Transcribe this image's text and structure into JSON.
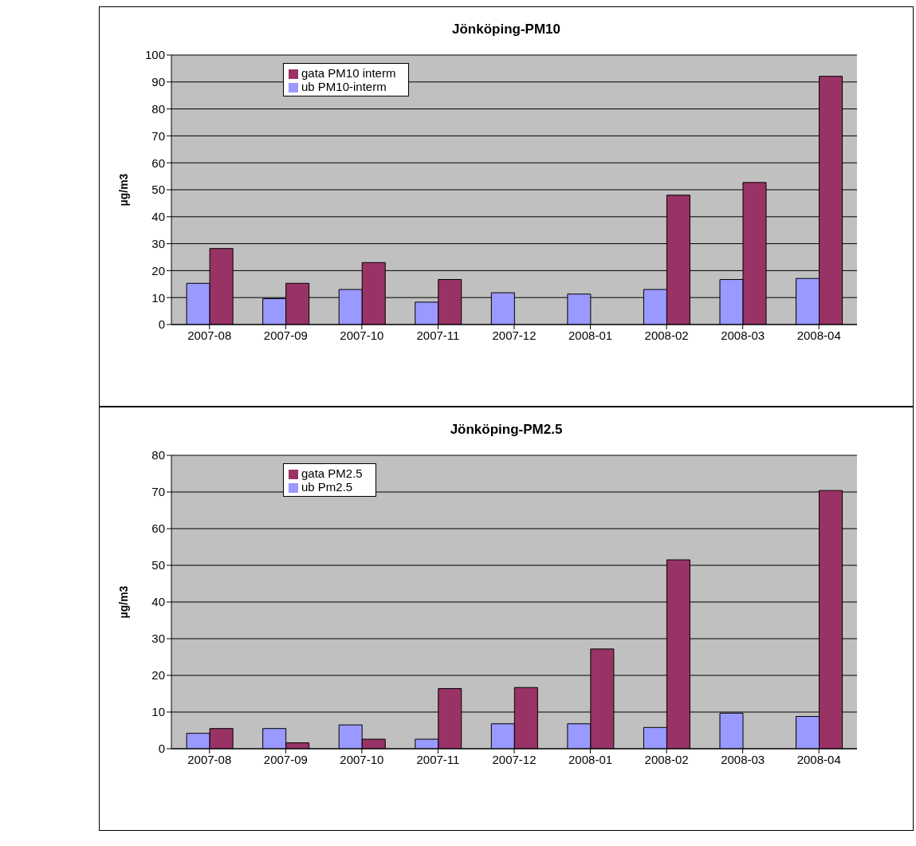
{
  "chart_data": [
    {
      "type": "bar",
      "title": "Jönköping-PM10",
      "ylabel": "µg/m3",
      "categories": [
        "2007-08",
        "2007-09",
        "2007-10",
        "2007-11",
        "2007-12",
        "2008-01",
        "2008-02",
        "2008-03",
        "2008-04"
      ],
      "series": [
        {
          "name": "ub PM10-interm",
          "color": "#9999ff",
          "values": [
            15.3,
            9.6,
            13,
            8.3,
            11.8,
            11.3,
            13,
            16.7,
            17.1
          ]
        },
        {
          "name": "gata PM10 interm",
          "color": "#993366",
          "values": [
            28.2,
            15.3,
            23,
            16.7,
            null,
            null,
            48,
            52.7,
            92.1
          ]
        }
      ],
      "ylim": [
        0,
        100
      ],
      "yticks": [
        0,
        10,
        20,
        30,
        40,
        50,
        60,
        70,
        80,
        90,
        100
      ],
      "grid": "y",
      "legend": "top left"
    },
    {
      "type": "bar",
      "title": "Jönköping-PM2.5",
      "ylabel": "µg/m3",
      "categories": [
        "2007-08",
        "2007-09",
        "2007-10",
        "2007-11",
        "2007-12",
        "2008-01",
        "2008-02",
        "2008-03",
        "2008-04"
      ],
      "series": [
        {
          "name": "ub Pm2.5",
          "color": "#9999ff",
          "values": [
            4.2,
            5.5,
            6.5,
            2.6,
            6.8,
            6.8,
            5.8,
            9.7,
            8.8
          ]
        },
        {
          "name": "gata PM2.5",
          "color": "#993366",
          "values": [
            5.5,
            1.6,
            2.6,
            16.4,
            16.7,
            27.2,
            51.5,
            null,
            70.4
          ]
        }
      ],
      "ylim": [
        0,
        80
      ],
      "yticks": [
        0,
        10,
        20,
        30,
        40,
        50,
        60,
        70,
        80
      ],
      "grid": "y",
      "legend": "top left"
    }
  ]
}
